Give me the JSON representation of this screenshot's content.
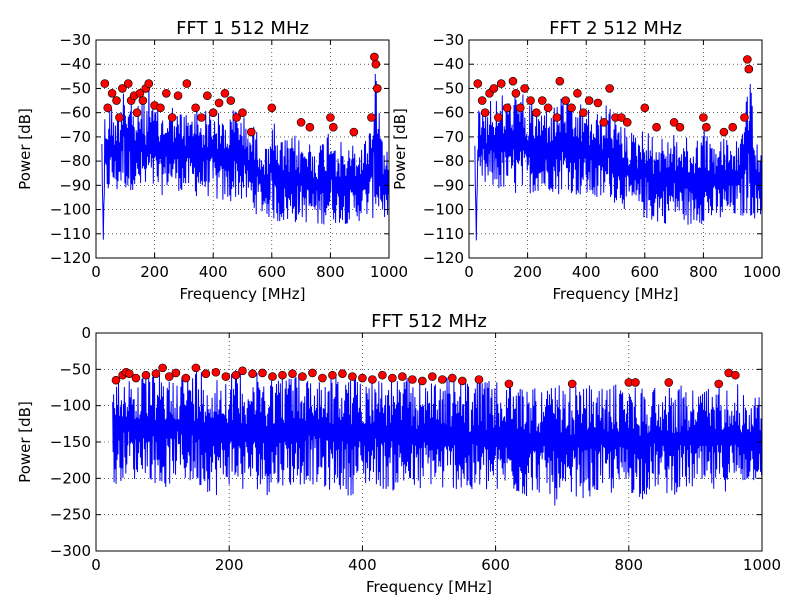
{
  "chart_data": [
    {
      "type": "line",
      "title": "FFT 1 512 MHz",
      "xlabel": "Frequency [MHz]",
      "ylabel": "Power [dB]",
      "xlim": [
        0,
        1000
      ],
      "ylim": [
        -120,
        -30
      ],
      "xticks": [
        0,
        200,
        400,
        600,
        800,
        1000
      ],
      "yticks": [
        -120,
        -110,
        -100,
        -90,
        -80,
        -70,
        -60,
        -50,
        -40,
        -30
      ],
      "grid": true,
      "series": [
        {
          "style": "blue-line",
          "x": [
            20,
            25,
            30,
            40,
            50,
            60,
            70,
            80,
            90,
            95,
            100,
            110,
            120,
            130,
            140,
            150,
            160,
            170,
            180,
            190,
            200,
            220,
            240,
            260,
            280,
            300,
            320,
            340,
            360,
            380,
            400,
            420,
            440,
            460,
            480,
            500,
            520,
            540,
            560,
            580,
            600,
            620,
            640,
            660,
            680,
            700,
            720,
            740,
            760,
            780,
            800,
            810,
            820,
            840,
            860,
            880,
            900,
            920,
            940,
            950,
            955,
            960,
            980,
            1000
          ],
          "y_upper": [
            -70,
            -112,
            -60,
            -58,
            -55,
            -60,
            -58,
            -57,
            -50,
            -36,
            -50,
            -55,
            -50,
            -60,
            -58,
            -55,
            -52,
            -62,
            -42,
            -58,
            -55,
            -60,
            -58,
            -56,
            -60,
            -58,
            -62,
            -55,
            -60,
            -58,
            -58,
            -60,
            -62,
            -60,
            -55,
            -60,
            -65,
            -65,
            -68,
            -75,
            -58,
            -72,
            -70,
            -72,
            -68,
            -72,
            -70,
            -72,
            -72,
            -70,
            -62,
            -62,
            -72,
            -72,
            -75,
            -72,
            -74,
            -70,
            -62,
            -38,
            -40,
            -45,
            -72,
            -78
          ],
          "y_lower": [
            -80,
            -113,
            -95,
            -95,
            -92,
            -92,
            -95,
            -92,
            -92,
            -90,
            -92,
            -95,
            -92,
            -92,
            -95,
            -95,
            -92,
            -95,
            -92,
            -95,
            -92,
            -95,
            -92,
            -92,
            -92,
            -95,
            -92,
            -95,
            -95,
            -95,
            -95,
            -98,
            -98,
            -98,
            -95,
            -98,
            -98,
            -102,
            -102,
            -104,
            -104,
            -106,
            -106,
            -106,
            -106,
            -104,
            -106,
            -106,
            -108,
            -106,
            -106,
            -106,
            -106,
            -106,
            -106,
            -106,
            -105,
            -104,
            -104,
            -104,
            -102,
            -104,
            -104,
            -107
          ]
        },
        {
          "style": "red-peak-markers",
          "x": [
            30,
            40,
            55,
            70,
            80,
            90,
            110,
            120,
            130,
            140,
            150,
            160,
            170,
            180,
            200,
            220,
            240,
            260,
            280,
            310,
            340,
            360,
            380,
            400,
            420,
            440,
            460,
            480,
            500,
            530,
            600,
            700,
            730,
            800,
            810,
            880,
            940,
            950,
            955,
            960
          ],
          "y": [
            -48,
            -58,
            -52,
            -55,
            -62,
            -50,
            -48,
            -55,
            -53,
            -60,
            -52,
            -55,
            -50,
            -48,
            -57,
            -58,
            -52,
            -62,
            -53,
            -48,
            -58,
            -62,
            -53,
            -60,
            -56,
            -52,
            -55,
            -62,
            -60,
            -68,
            -58,
            -64,
            -66,
            -62,
            -66,
            -68,
            -62,
            -37,
            -40,
            -50
          ]
        }
      ]
    },
    {
      "type": "line",
      "title": "FFT 2 512 MHz",
      "xlabel": "Frequency [MHz]",
      "ylabel": "Power [dB]",
      "xlim": [
        0,
        1000
      ],
      "ylim": [
        -120,
        -30
      ],
      "xticks": [
        0,
        200,
        400,
        600,
        800,
        1000
      ],
      "yticks": [
        -120,
        -110,
        -100,
        -90,
        -80,
        -70,
        -60,
        -50,
        -40,
        -30
      ],
      "grid": true,
      "series": [
        {
          "style": "blue-line",
          "x": [
            20,
            25,
            30,
            40,
            50,
            60,
            70,
            80,
            90,
            100,
            110,
            120,
            130,
            140,
            150,
            160,
            170,
            180,
            190,
            200,
            220,
            240,
            260,
            280,
            300,
            320,
            340,
            360,
            380,
            400,
            420,
            440,
            460,
            480,
            500,
            520,
            540,
            560,
            580,
            600,
            620,
            640,
            660,
            680,
            700,
            720,
            740,
            760,
            780,
            800,
            820,
            840,
            860,
            880,
            900,
            920,
            940,
            950,
            960,
            980,
            1000
          ],
          "y_upper": [
            -70,
            -112,
            -60,
            -57,
            -52,
            -58,
            -50,
            -56,
            -52,
            -58,
            -50,
            -55,
            -52,
            -55,
            -48,
            -52,
            -55,
            -50,
            -55,
            -58,
            -55,
            -60,
            -56,
            -58,
            -56,
            -50,
            -55,
            -58,
            -56,
            -58,
            -58,
            -60,
            -58,
            -55,
            -62,
            -65,
            -66,
            -68,
            -68,
            -62,
            -70,
            -68,
            -70,
            -68,
            -68,
            -70,
            -70,
            -72,
            -70,
            -62,
            -72,
            -70,
            -70,
            -70,
            -72,
            -70,
            -62,
            -38,
            -46,
            -72,
            -78
          ],
          "y_lower": [
            -80,
            -113,
            -95,
            -92,
            -92,
            -92,
            -95,
            -92,
            -92,
            -92,
            -95,
            -92,
            -92,
            -95,
            -92,
            -95,
            -92,
            -95,
            -92,
            -92,
            -95,
            -92,
            -95,
            -92,
            -95,
            -92,
            -92,
            -95,
            -95,
            -95,
            -97,
            -98,
            -97,
            -95,
            -98,
            -98,
            -102,
            -102,
            -104,
            -104,
            -106,
            -106,
            -106,
            -106,
            -104,
            -106,
            -106,
            -108,
            -106,
            -106,
            -106,
            -106,
            -106,
            -105,
            -104,
            -104,
            -104,
            -102,
            -104,
            -104,
            -107
          ]
        },
        {
          "style": "red-peak-markers",
          "x": [
            30,
            45,
            55,
            70,
            85,
            100,
            110,
            130,
            150,
            160,
            175,
            190,
            210,
            230,
            250,
            270,
            300,
            310,
            330,
            350,
            370,
            390,
            410,
            440,
            460,
            480,
            500,
            520,
            540,
            600,
            640,
            700,
            720,
            800,
            810,
            870,
            900,
            940,
            950,
            955
          ],
          "y": [
            -48,
            -55,
            -60,
            -52,
            -50,
            -62,
            -48,
            -58,
            -47,
            -52,
            -58,
            -50,
            -55,
            -60,
            -55,
            -58,
            -62,
            -47,
            -55,
            -58,
            -52,
            -60,
            -55,
            -56,
            -64,
            -50,
            -62,
            -62,
            -64,
            -58,
            -66,
            -64,
            -66,
            -62,
            -66,
            -68,
            -66,
            -62,
            -38,
            -42
          ]
        }
      ]
    },
    {
      "type": "line",
      "title": "FFT 512 MHz",
      "xlabel": "Frequency [MHz]",
      "ylabel": "Power [dB]",
      "xlim": [
        0,
        1000
      ],
      "ylim": [
        -300,
        0
      ],
      "xticks": [
        0,
        200,
        400,
        600,
        800,
        1000
      ],
      "yticks": [
        -300,
        -250,
        -200,
        -150,
        -100,
        -50,
        0
      ],
      "grid": true,
      "series": [
        {
          "style": "blue-line",
          "x": [
            25,
            30,
            40,
            50,
            60,
            70,
            80,
            90,
            100,
            120,
            140,
            160,
            180,
            200,
            220,
            240,
            260,
            280,
            300,
            320,
            340,
            360,
            380,
            400,
            420,
            440,
            460,
            480,
            500,
            520,
            540,
            560,
            580,
            600,
            620,
            640,
            660,
            680,
            700,
            720,
            740,
            760,
            780,
            800,
            820,
            840,
            860,
            880,
            900,
            920,
            940,
            955,
            970,
            990,
            1000
          ],
          "y_upper": [
            -75,
            -65,
            -58,
            -55,
            -65,
            -60,
            -58,
            -55,
            -60,
            -55,
            -50,
            -45,
            -55,
            -52,
            -48,
            -55,
            -52,
            -55,
            -52,
            -58,
            -55,
            -56,
            -58,
            -55,
            -58,
            -60,
            -62,
            -60,
            -62,
            -60,
            -60,
            -62,
            -60,
            -68,
            -65,
            -70,
            -70,
            -72,
            -72,
            -70,
            -72,
            -72,
            -70,
            -68,
            -72,
            -70,
            -70,
            -72,
            -74,
            -72,
            -65,
            -55,
            -80,
            -82,
            -85
          ],
          "y_lower": [
            -230,
            -215,
            -200,
            -195,
            -205,
            -190,
            -200,
            -210,
            -220,
            -200,
            -210,
            -215,
            -225,
            -210,
            -220,
            -215,
            -225,
            -210,
            -215,
            -205,
            -220,
            -215,
            -225,
            -215,
            -210,
            -220,
            -215,
            -225,
            -210,
            -220,
            -215,
            -230,
            -220,
            -225,
            -215,
            -230,
            -220,
            -225,
            -255,
            -225,
            -230,
            -220,
            -225,
            -220,
            -230,
            -215,
            -225,
            -220,
            -215,
            -225,
            -220,
            -215,
            -210,
            -205,
            -200
          ]
        },
        {
          "style": "red-peak-markers",
          "x": [
            30,
            40,
            45,
            50,
            60,
            75,
            90,
            100,
            110,
            120,
            135,
            150,
            165,
            180,
            195,
            210,
            220,
            235,
            250,
            265,
            280,
            295,
            310,
            325,
            340,
            355,
            370,
            385,
            400,
            415,
            430,
            445,
            460,
            475,
            490,
            505,
            520,
            535,
            550,
            575,
            620,
            715,
            800,
            810,
            860,
            935,
            950,
            960
          ],
          "y": [
            -65,
            -58,
            -54,
            -56,
            -62,
            -58,
            -56,
            -48,
            -60,
            -55,
            -62,
            -48,
            -56,
            -54,
            -60,
            -58,
            -52,
            -56,
            -55,
            -60,
            -58,
            -56,
            -60,
            -55,
            -62,
            -58,
            -56,
            -60,
            -62,
            -64,
            -58,
            -62,
            -60,
            -64,
            -66,
            -60,
            -64,
            -62,
            -66,
            -64,
            -70,
            -70,
            -68,
            -68,
            -68,
            -70,
            -55,
            -58
          ]
        }
      ]
    }
  ]
}
